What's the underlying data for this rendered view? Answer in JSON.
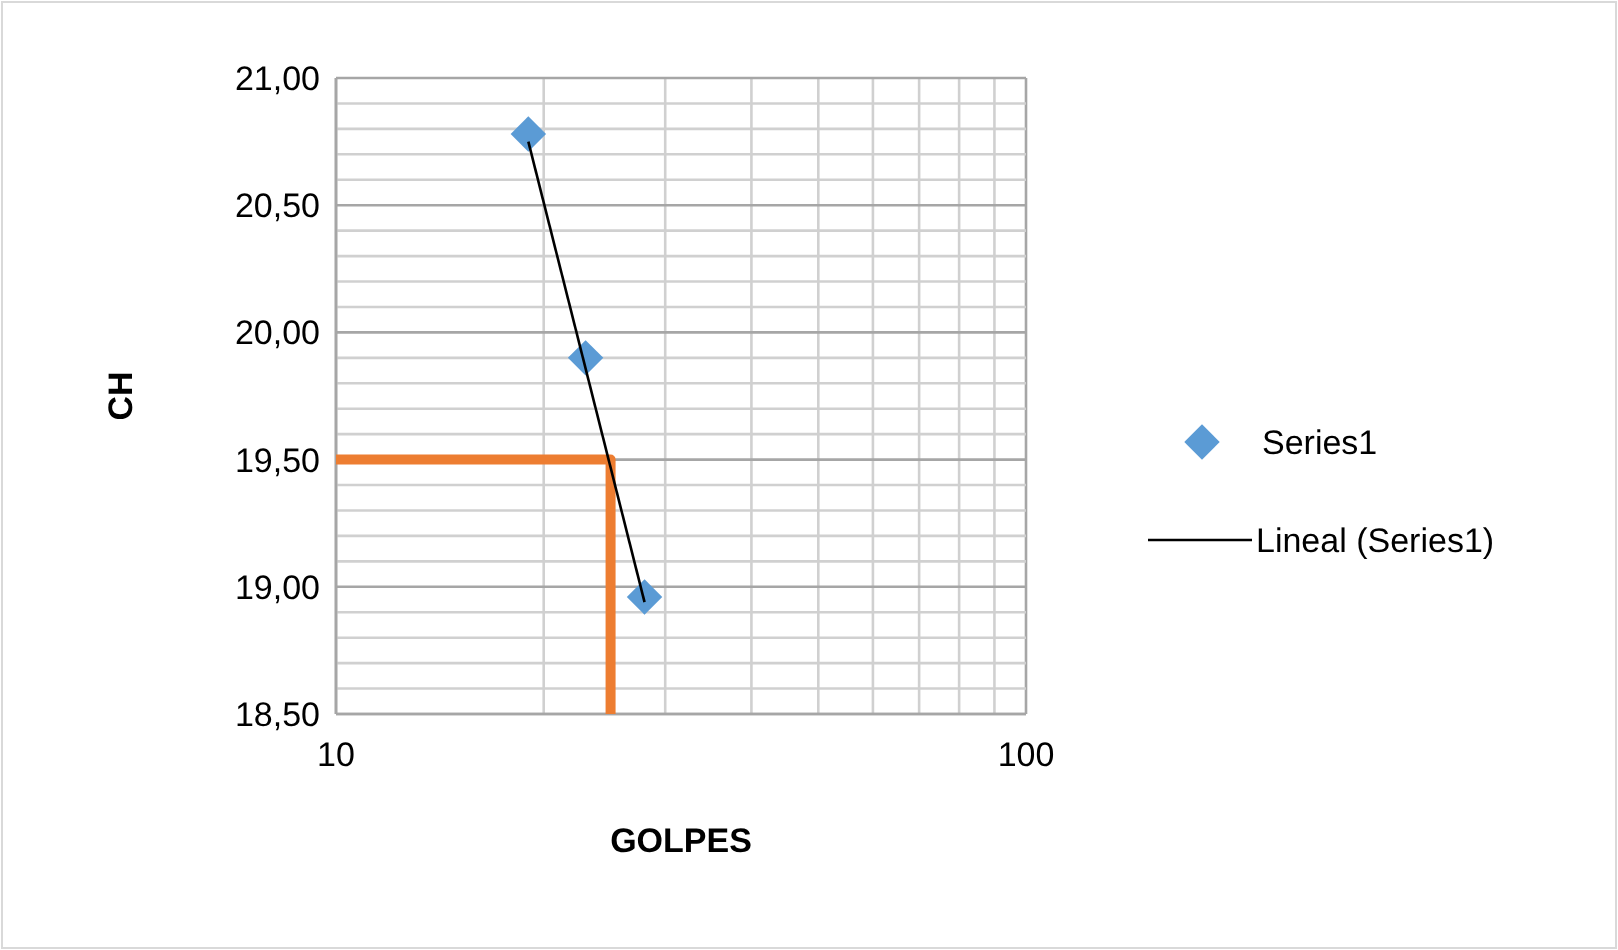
{
  "chart_data": {
    "type": "scatter",
    "xlabel": "GOLPES",
    "ylabel": "CH",
    "log": "x",
    "grid": true,
    "legend": "right",
    "xlim": [
      10,
      100
    ],
    "xticks": [
      10,
      100
    ],
    "ylim": [
      18.5,
      21
    ],
    "yticks": [
      {
        "value": 18.5,
        "label": "18,50"
      },
      {
        "value": 19,
        "label": "19,00"
      },
      {
        "value": 19.5,
        "label": "19,50"
      },
      {
        "value": 20,
        "label": "20,00"
      },
      {
        "value": 20.5,
        "label": "20,50"
      },
      {
        "value": 21,
        "label": "21,00"
      }
    ],
    "series": [
      {
        "name": "Series1",
        "marker": "diamond",
        "color": "#5b9bd5",
        "x": [
          19,
          23,
          28
        ],
        "values": [
          20.78,
          19.9,
          18.96
        ]
      },
      {
        "name": "Lineal (Series1)",
        "type": "line",
        "marker": "none",
        "color": "#000000",
        "x": [
          19,
          28
        ],
        "values": [
          20.75,
          18.94
        ]
      },
      {
        "type": "line",
        "marker": "none",
        "color": "#ed7d31",
        "x": [
          10,
          25,
          25
        ],
        "values": [
          19.5,
          19.5,
          18.5
        ]
      }
    ]
  }
}
